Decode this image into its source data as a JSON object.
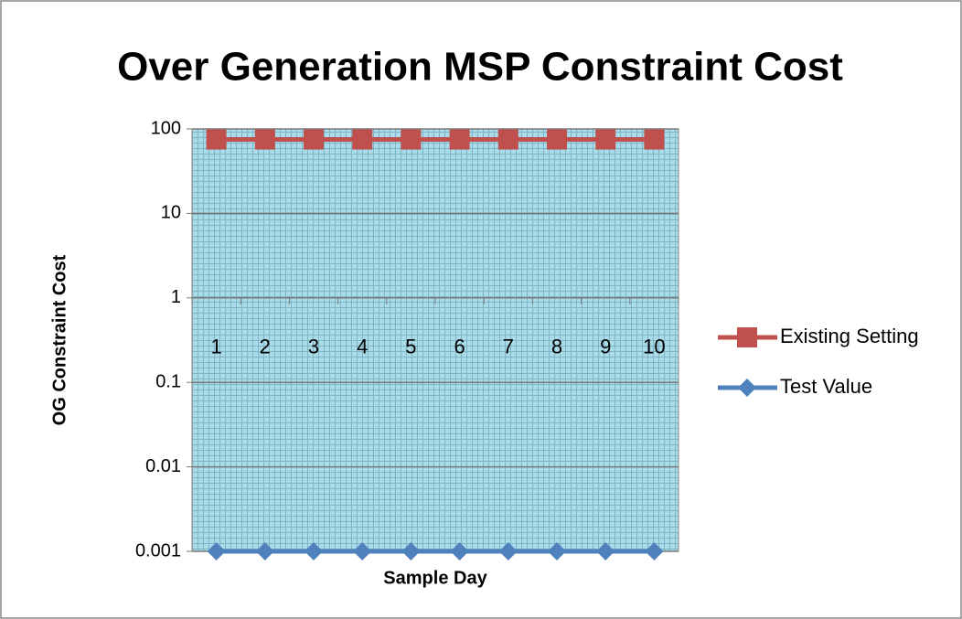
{
  "chart_data": {
    "type": "line",
    "title": "Over Generation MSP Constraint Cost",
    "x_label": "Sample Day",
    "y_label": "OG Constraint Cost",
    "categories": [
      1,
      2,
      3,
      4,
      5,
      6,
      7,
      8,
      9,
      10
    ],
    "series": [
      {
        "name": "Existing Setting",
        "color": "#c0504d",
        "marker": "square",
        "values": [
          75,
          75,
          75,
          75,
          75,
          75,
          75,
          75,
          75,
          75
        ]
      },
      {
        "name": "Test Value",
        "color": "#4f81bd",
        "marker": "diamond",
        "values": [
          0.001,
          0.001,
          0.001,
          0.001,
          0.001,
          0.001,
          0.001,
          0.001,
          0.001,
          0.001
        ]
      }
    ],
    "ylim": [
      0.001,
      100
    ],
    "yticks": [
      0.001,
      0.01,
      0.1,
      1,
      10,
      100
    ],
    "y_log": true,
    "x_axis_crosses": 1,
    "grid": true,
    "legend": "right"
  }
}
